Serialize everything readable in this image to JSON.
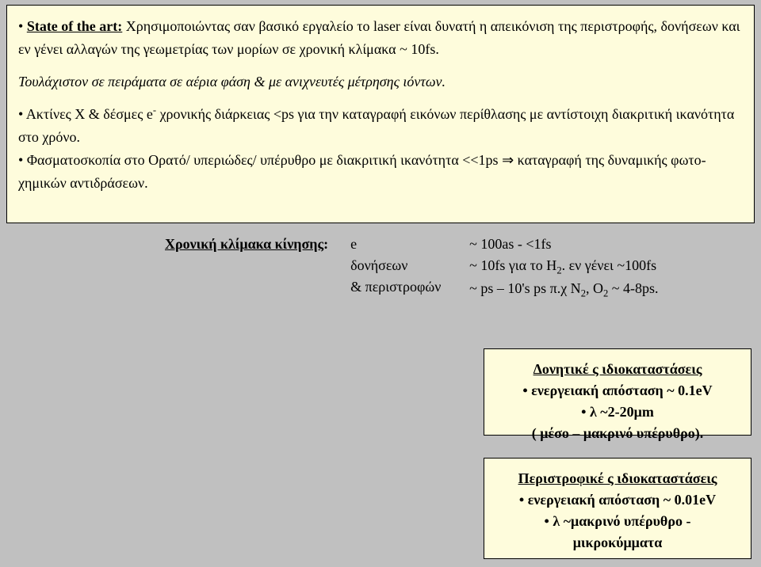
{
  "box1": {
    "state_label": "State of the art:",
    "p1_rest": "  Χρησιμοποιώντας σαν βασικό εργαλείο το laser είναι δυνατή η απεικόνιση της περιστροφής, δονήσεων και εν γένει αλλαγών της γεωμετρίας των μορίων σε χρονική κλίμακα ~ 10fs.",
    "p2": "Τουλάχιστον σε πειράματα σε αέρια φάση  & με ανιχνευτές μέτρησης ιόντων.",
    "p3a": "Ακτίνες Χ & δέσμες e",
    "p3sup": "-",
    "p3b": " χρονικής διάρκειας <ps για την καταγραφή εικόνων περίθλασης με αντίστοιχη διακριτική ικανότητα στο χρόνο.",
    "p4a": "Φασματοσκοπία στο Ορατό/ υπεριώδες/ υπέρυθρο με διακριτική ικανότητα <<1ps ",
    "p4arrow": "⇒",
    "p4b": " καταγραφή της δυναμικής φωτο-χημικών αντιδράσεων."
  },
  "timescale": {
    "label": "Χρονική κλίμακα κίνησης",
    "colon": ":",
    "c1l1": "e",
    "c1l2": "δονήσεων",
    "c1l3": "& περιστροφών",
    "c2l1": "~ 100as - <1fs",
    "c2l2a": "~ 10fs για το H",
    "c2l2sub": "2",
    "c2l2b": ". εν γένει ~100fs",
    "c2l3a": "~ ps – 10's ps  π.χ N",
    "c2l3s1": "2",
    "c2l3b": ", O",
    "c2l3s2": "2",
    "c2l3c": " ~ 4-8ps."
  },
  "vib": {
    "title": "Δονητικέ ς ιδιοκαταστάσεις",
    "l1": "ενεργειακή απόσταση ~ 0.1eV",
    "l2": "λ ~2-20μm",
    "l3": "( μέσο – μακρινό υπέρυθρο)."
  },
  "rot": {
    "title": "Περιστροφικέ ς ιδιοκαταστάσεις",
    "l1": "ενεργειακή απόσταση ~ 0.01eV",
    "l2": "λ ~μακρινό υπέρυθρο -",
    "l3": "μικροκύμματα"
  },
  "bullet": "• "
}
